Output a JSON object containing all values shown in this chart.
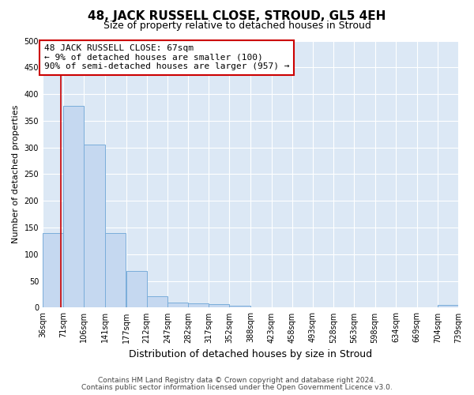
{
  "title": "48, JACK RUSSELL CLOSE, STROUD, GL5 4EH",
  "subtitle": "Size of property relative to detached houses in Stroud",
  "xlabel": "Distribution of detached houses by size in Stroud",
  "ylabel": "Number of detached properties",
  "footnote1": "Contains HM Land Registry data © Crown copyright and database right 2024.",
  "footnote2": "Contains public sector information licensed under the Open Government Licence v3.0.",
  "bin_edges": [
    36,
    71,
    106,
    141,
    177,
    212,
    247,
    282,
    317,
    352,
    388,
    423,
    458,
    493,
    528,
    563,
    598,
    634,
    669,
    704,
    739
  ],
  "bar_heights": [
    140,
    378,
    306,
    140,
    68,
    22,
    10,
    8,
    6,
    4,
    1,
    0,
    0,
    0,
    0,
    0,
    0,
    0,
    0,
    5
  ],
  "bar_color": "#c5d8f0",
  "bar_edge_color": "#7aadda",
  "property_size": 67,
  "red_line_color": "#cc0000",
  "annotation_line1": "48 JACK RUSSELL CLOSE: 67sqm",
  "annotation_line2": "← 9% of detached houses are smaller (100)",
  "annotation_line3": "90% of semi-detached houses are larger (957) →",
  "annotation_box_color": "#cc0000",
  "ylim": [
    0,
    500
  ],
  "fig_bg_color": "#ffffff",
  "plot_bg_color": "#dce8f5",
  "grid_color": "#ffffff",
  "title_fontsize": 11,
  "subtitle_fontsize": 9,
  "ylabel_fontsize": 8,
  "xlabel_fontsize": 9,
  "tick_fontsize": 7,
  "footnote_fontsize": 6.5
}
